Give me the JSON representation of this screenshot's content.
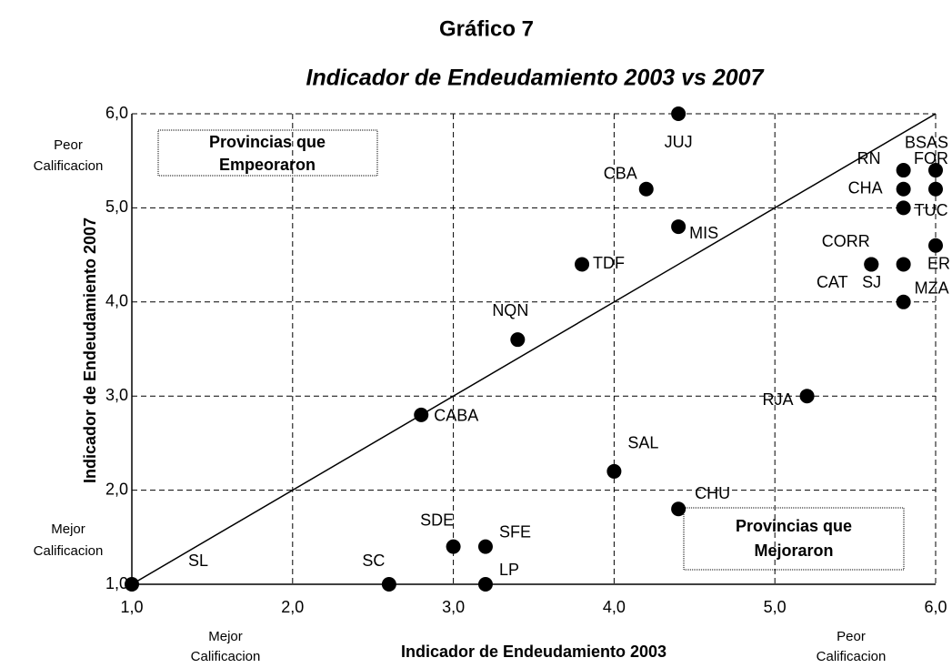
{
  "chart_data": {
    "type": "scatter",
    "title": "Gráfico  7",
    "subtitle": "Indicador de Endeudamiento 2003 vs 2007",
    "x_label": "Indicador de Endeudamiento 2003",
    "y_label": "Indicador de Endeudamiento 2007",
    "y_top_note": [
      "Peor",
      "Calificacion"
    ],
    "y_bottom_note": [
      "Mejor",
      "Calificacion"
    ],
    "x_left_note": [
      "Mejor",
      "Calificacion"
    ],
    "x_right_note": [
      "Peor",
      "Calificacion"
    ],
    "box_worse": [
      "Provincias que",
      "Empeoraron"
    ],
    "box_better": [
      "Provincias que",
      "Mejoraron"
    ],
    "labels": [
      "JUJ",
      "CBA",
      "MIS",
      "TDF",
      "NQN",
      "CABA",
      "SAL",
      "CHU",
      "SDE",
      "SFE",
      "SC",
      "LP",
      "SL",
      "RJA",
      "RN",
      "BSAS",
      "FOR",
      "CHA",
      "TUC",
      "CORR",
      "ER",
      "CAT",
      "SJ",
      "MZA"
    ],
    "x": [
      4.4,
      4.2,
      4.4,
      3.8,
      3.4,
      2.8,
      4.0,
      4.4,
      3.0,
      3.2,
      2.6,
      3.2,
      1.0,
      5.2,
      5.8,
      6.0,
      6.0,
      5.8,
      5.8,
      5.6,
      6.0,
      5.6,
      5.8,
      5.8
    ],
    "series": [
      {
        "color": "#000000",
        "values": [
          6.0,
          5.2,
          4.8,
          4.4,
          3.6,
          2.8,
          2.2,
          1.8,
          1.4,
          1.4,
          1.0,
          1.0,
          1.0,
          3.0,
          5.4,
          5.2,
          5.4,
          5.2,
          5.0,
          4.4,
          4.6,
          4.4,
          4.4,
          4.0
        ]
      }
    ],
    "xlim": [
      1,
      6
    ],
    "ylim": [
      1,
      6
    ],
    "xticks": [
      {
        "value": 1,
        "label": "1,0"
      },
      {
        "value": 2,
        "label": "2,0"
      },
      {
        "value": 3,
        "label": "3,0"
      },
      {
        "value": 4,
        "label": "4,0"
      },
      {
        "value": 5,
        "label": "5,0"
      },
      {
        "value": 6,
        "label": "6,0"
      }
    ],
    "yticks": [
      {
        "value": 1,
        "label": "1,0"
      },
      {
        "value": 2,
        "label": "2,0"
      },
      {
        "value": 3,
        "label": "3,0"
      },
      {
        "value": 4,
        "label": "4,0"
      },
      {
        "value": 5,
        "label": "5,0"
      },
      {
        "value": 6,
        "label": "6,0"
      }
    ],
    "grid": true
  }
}
